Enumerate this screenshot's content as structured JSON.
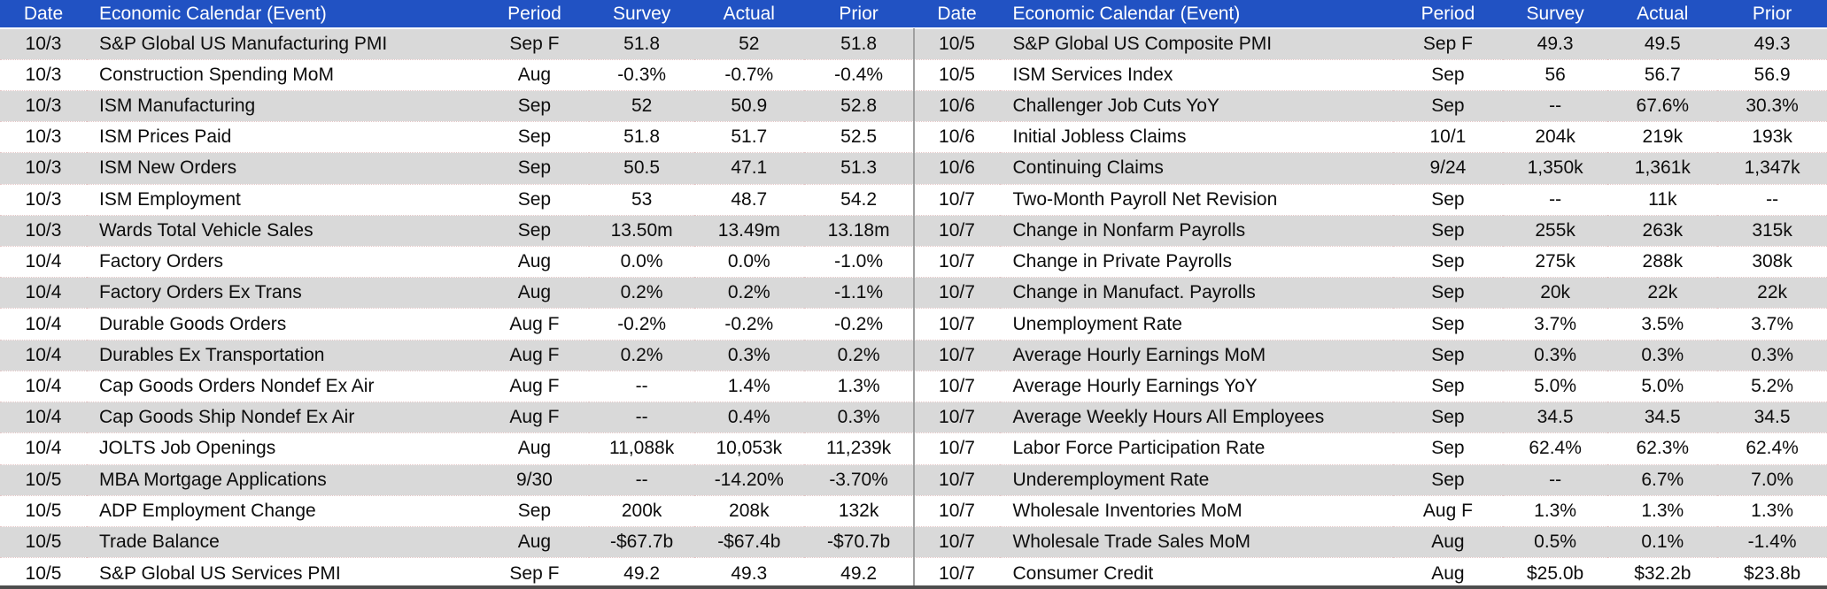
{
  "header": {
    "columns": [
      "Date",
      "Economic Calendar (Event)",
      "Period",
      "Survey",
      "Actual",
      "Prior"
    ]
  },
  "tables": {
    "left": {
      "rows": [
        [
          "10/3",
          "S&P Global US Manufacturing PMI",
          "Sep F",
          "51.8",
          "52",
          "51.8"
        ],
        [
          "10/3",
          "Construction Spending MoM",
          "Aug",
          "-0.3%",
          "-0.7%",
          "-0.4%"
        ],
        [
          "10/3",
          "ISM Manufacturing",
          "Sep",
          "52",
          "50.9",
          "52.8"
        ],
        [
          "10/3",
          "ISM Prices Paid",
          "Sep",
          "51.8",
          "51.7",
          "52.5"
        ],
        [
          "10/3",
          "ISM New Orders",
          "Sep",
          "50.5",
          "47.1",
          "51.3"
        ],
        [
          "10/3",
          "ISM Employment",
          "Sep",
          "53",
          "48.7",
          "54.2"
        ],
        [
          "10/3",
          "Wards Total Vehicle Sales",
          "Sep",
          "13.50m",
          "13.49m",
          "13.18m"
        ],
        [
          "10/4",
          "Factory Orders",
          "Aug",
          "0.0%",
          "0.0%",
          "-1.0%"
        ],
        [
          "10/4",
          "Factory Orders Ex Trans",
          "Aug",
          "0.2%",
          "0.2%",
          "-1.1%"
        ],
        [
          "10/4",
          "Durable Goods Orders",
          "Aug F",
          "-0.2%",
          "-0.2%",
          "-0.2%"
        ],
        [
          "10/4",
          "Durables Ex Transportation",
          "Aug F",
          "0.2%",
          "0.3%",
          "0.2%"
        ],
        [
          "10/4",
          "Cap Goods Orders Nondef Ex Air",
          "Aug F",
          "--",
          "1.4%",
          "1.3%"
        ],
        [
          "10/4",
          "Cap Goods Ship Nondef Ex Air",
          "Aug F",
          "--",
          "0.4%",
          "0.3%"
        ],
        [
          "10/4",
          "JOLTS Job Openings",
          "Aug",
          "11,088k",
          "10,053k",
          "11,239k"
        ],
        [
          "10/5",
          "MBA Mortgage Applications",
          "9/30",
          "--",
          "-14.20%",
          "-3.70%"
        ],
        [
          "10/5",
          "ADP Employment Change",
          "Sep",
          "200k",
          "208k",
          "132k"
        ],
        [
          "10/5",
          "Trade Balance",
          "Aug",
          "-$67.7b",
          "-$67.4b",
          "-$70.7b"
        ],
        [
          "10/5",
          "S&P Global US Services PMI",
          "Sep F",
          "49.2",
          "49.3",
          "49.2"
        ]
      ]
    },
    "right": {
      "rows": [
        [
          "10/5",
          "S&P Global US Composite PMI",
          "Sep F",
          "49.3",
          "49.5",
          "49.3"
        ],
        [
          "10/5",
          "ISM Services Index",
          "Sep",
          "56",
          "56.7",
          "56.9"
        ],
        [
          "10/6",
          "Challenger Job Cuts YoY",
          "Sep",
          "--",
          "67.6%",
          "30.3%"
        ],
        [
          "10/6",
          "Initial Jobless Claims",
          "10/1",
          "204k",
          "219k",
          "193k"
        ],
        [
          "10/6",
          "Continuing Claims",
          "9/24",
          "1,350k",
          "1,361k",
          "1,347k"
        ],
        [
          "10/7",
          "Two-Month Payroll Net Revision",
          "Sep",
          "--",
          "11k",
          "--"
        ],
        [
          "10/7",
          "Change in Nonfarm Payrolls",
          "Sep",
          "255k",
          "263k",
          "315k"
        ],
        [
          "10/7",
          "Change in Private Payrolls",
          "Sep",
          "275k",
          "288k",
          "308k"
        ],
        [
          "10/7",
          "Change in Manufact. Payrolls",
          "Sep",
          "20k",
          "22k",
          "22k"
        ],
        [
          "10/7",
          "Unemployment Rate",
          "Sep",
          "3.7%",
          "3.5%",
          "3.7%"
        ],
        [
          "10/7",
          "Average Hourly Earnings MoM",
          "Sep",
          "0.3%",
          "0.3%",
          "0.3%"
        ],
        [
          "10/7",
          "Average Hourly Earnings YoY",
          "Sep",
          "5.0%",
          "5.0%",
          "5.2%"
        ],
        [
          "10/7",
          "Average Weekly Hours All Employees",
          "Sep",
          "34.5",
          "34.5",
          "34.5"
        ],
        [
          "10/7",
          "Labor Force Participation Rate",
          "Sep",
          "62.4%",
          "62.3%",
          "62.4%"
        ],
        [
          "10/7",
          "Underemployment Rate",
          "Sep",
          "--",
          "6.7%",
          "7.0%"
        ],
        [
          "10/7",
          "Wholesale Inventories MoM",
          "Aug F",
          "1.3%",
          "1.3%",
          "1.3%"
        ],
        [
          "10/7",
          "Wholesale Trade Sales MoM",
          "Aug",
          "0.5%",
          "0.1%",
          "-1.4%"
        ],
        [
          "10/7",
          "Consumer Credit",
          "Aug",
          "$25.0b",
          "$32.2b",
          "$23.8b"
        ]
      ]
    }
  },
  "colors": {
    "header_bg": "#2152c3",
    "header_text": "#ffffff",
    "row_alt_bg": "#d9d9d9",
    "row_bg": "#ffffff",
    "text": "#0d0d0d",
    "divider": "#a0a0a0",
    "bottom_bar": "#4d4d4d"
  }
}
